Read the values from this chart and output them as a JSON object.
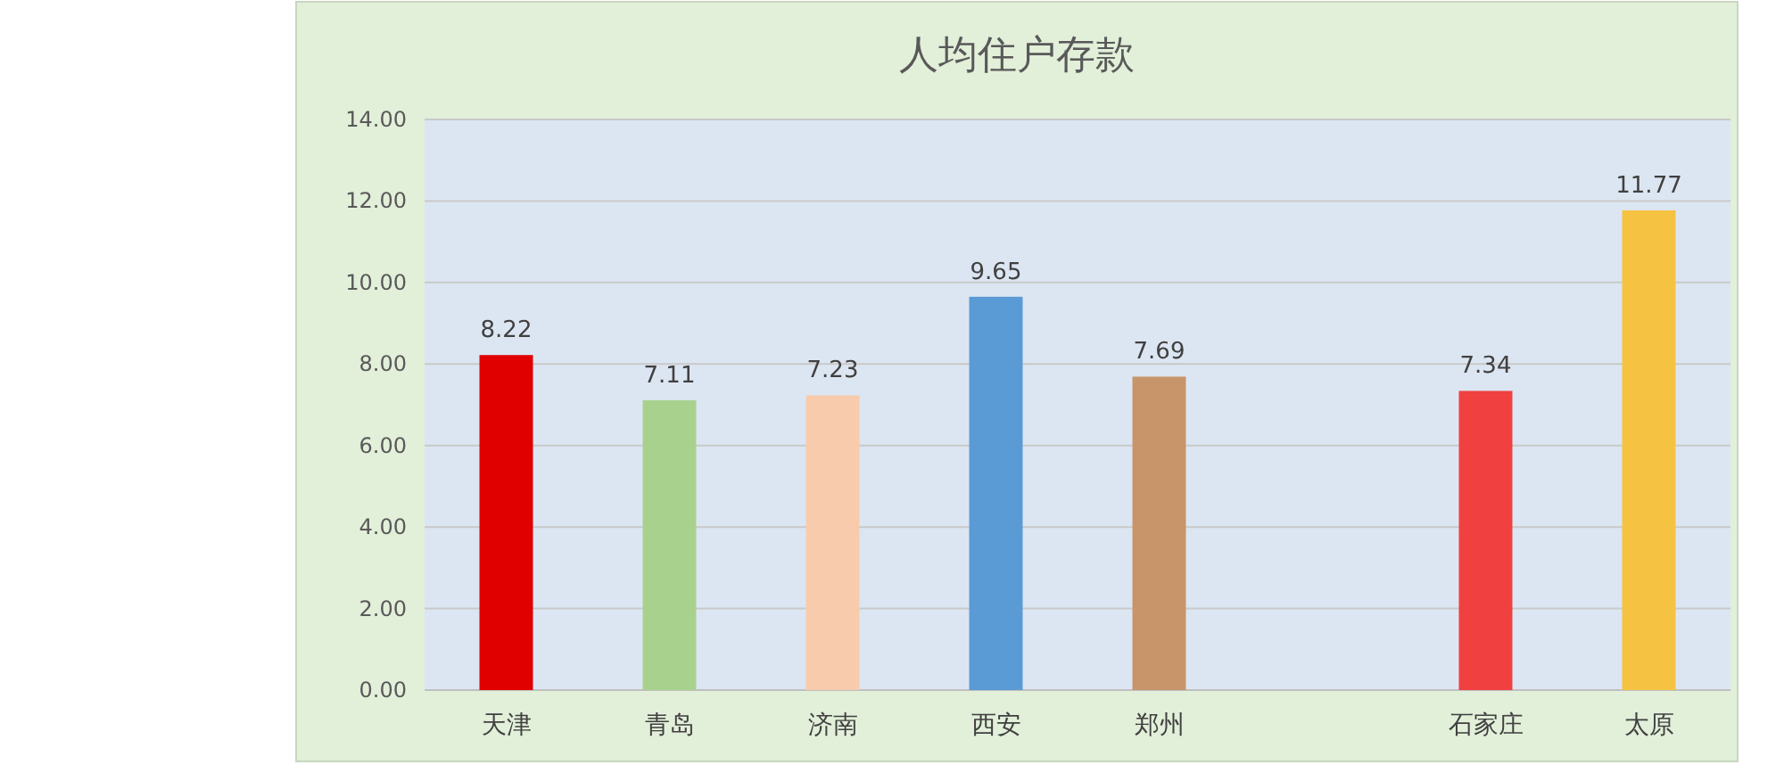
{
  "chart_data": {
    "type": "bar",
    "title": "人均住户存款",
    "categories": [
      "天津",
      "青岛",
      "济南",
      "西安",
      "郑州",
      null,
      "石家庄",
      "太原"
    ],
    "values": [
      8.22,
      7.11,
      7.23,
      9.65,
      7.69,
      null,
      7.34,
      11.77
    ],
    "colors": [
      "#e00000",
      "#a9d18e",
      "#f8cbad",
      "#5b9bd5",
      "#c8956a",
      null,
      "#f04040",
      "#f5c242"
    ],
    "ylim": [
      0,
      14
    ],
    "yticks": [
      {
        "value": 0,
        "label": "0.00"
      },
      {
        "value": 2,
        "label": "2.00"
      },
      {
        "value": 4,
        "label": "4.00"
      },
      {
        "value": 6,
        "label": "6.00"
      },
      {
        "value": 8,
        "label": "8.00"
      },
      {
        "value": 10,
        "label": "10.00"
      },
      {
        "value": 12,
        "label": "12.00"
      },
      {
        "value": 14,
        "label": "14.00"
      }
    ],
    "grid": "y",
    "data_labels": true
  }
}
